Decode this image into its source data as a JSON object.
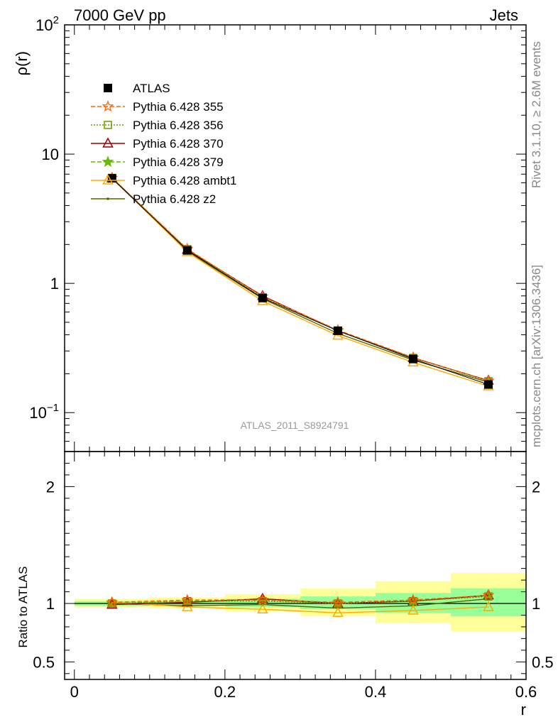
{
  "header": {
    "left": "7000 GeV pp",
    "right": "Jets"
  },
  "side_labels": {
    "top": "Rivet 3.1.10, ≥ 2.6M events",
    "bottom": "mcplots.cern.ch [arXiv:1306.3436]"
  },
  "watermark": "ATLAS_2011_S8924791",
  "colors": {
    "atlas": "#000000",
    "p355": "#ff6600",
    "p356": "#669900",
    "p370": "#990000",
    "p379": "#66bb00",
    "ambt1": "#ffaa00",
    "z2": "#556600",
    "band_stat": "#99ff99",
    "band_total": "#ffff99"
  },
  "chart_data": [
    {
      "type": "line",
      "panel": "main",
      "ylabel": "ρ(r)",
      "xlabel": "",
      "yscale": "log",
      "ylim": [
        0.05,
        100
      ],
      "xlim": [
        -0.013,
        0.6
      ],
      "yticks": [
        {
          "value": 0.1,
          "base": "10",
          "exp": "−1"
        },
        {
          "value": 1,
          "base": "1",
          "exp": ""
        },
        {
          "value": 10,
          "base": "10",
          "exp": ""
        },
        {
          "value": 100,
          "base": "10",
          "exp": "2"
        }
      ],
      "x": [
        0.05,
        0.15,
        0.25,
        0.35,
        0.45,
        0.55
      ],
      "series": [
        {
          "name": "ATLAS",
          "key": "atlas",
          "marker": "square-filled",
          "dash": "none",
          "values": [
            6.5,
            1.8,
            0.77,
            0.43,
            0.26,
            0.165
          ]
        },
        {
          "name": "Pythia 6.428 355",
          "key": "p355",
          "marker": "star-open",
          "dash": "6,3",
          "values": [
            6.55,
            1.85,
            0.79,
            0.435,
            0.267,
            0.176
          ]
        },
        {
          "name": "Pythia 6.428 356",
          "key": "p356",
          "marker": "square-open",
          "dash": "2,2",
          "values": [
            6.55,
            1.84,
            0.78,
            0.43,
            0.265,
            0.175
          ]
        },
        {
          "name": "Pythia 6.428 370",
          "key": "p370",
          "marker": "triangle-open",
          "dash": "none",
          "values": [
            6.5,
            1.82,
            0.8,
            0.43,
            0.265,
            0.177
          ]
        },
        {
          "name": "Pythia 6.428 379",
          "key": "p379",
          "marker": "star-filled",
          "dash": "6,3",
          "values": [
            6.55,
            1.83,
            0.79,
            0.43,
            0.265,
            0.177
          ]
        },
        {
          "name": "Pythia 6.428 ambt1",
          "key": "ambt1",
          "marker": "triangle-open",
          "dash": "none",
          "values": [
            6.55,
            1.75,
            0.73,
            0.395,
            0.245,
            0.16
          ]
        },
        {
          "name": "Pythia 6.428 z2",
          "key": "z2",
          "marker": "dot",
          "dash": "none",
          "values": [
            6.5,
            1.77,
            0.76,
            0.41,
            0.255,
            0.172
          ]
        }
      ]
    },
    {
      "type": "line",
      "panel": "ratio",
      "ylabel": "Ratio to ATLAS",
      "xlabel": "r",
      "ylim": [
        0.35,
        2.3
      ],
      "xlim": [
        -0.013,
        0.6
      ],
      "xticks": [
        "0",
        "0.2",
        "0.4",
        "0.6"
      ],
      "xtick_values": [
        0,
        0.2,
        0.4,
        0.6
      ],
      "yticks": [
        "0.5",
        "1",
        "2"
      ],
      "ytick_values": [
        0.5,
        1,
        2
      ],
      "bins": [
        [
          0.0,
          0.1
        ],
        [
          0.1,
          0.2
        ],
        [
          0.2,
          0.3
        ],
        [
          0.3,
          0.4
        ],
        [
          0.4,
          0.5
        ],
        [
          0.5,
          0.6
        ]
      ],
      "band_total": [
        [
          0.97,
          1.04
        ],
        [
          0.96,
          1.05
        ],
        [
          0.93,
          1.08
        ],
        [
          0.89,
          1.13
        ],
        [
          0.83,
          1.19
        ],
        [
          0.76,
          1.26
        ]
      ],
      "band_stat": [
        [
          0.98,
          1.02
        ],
        [
          0.985,
          1.02
        ],
        [
          0.97,
          1.04
        ],
        [
          0.95,
          1.06
        ],
        [
          0.92,
          1.09
        ],
        [
          0.89,
          1.13
        ]
      ],
      "x": [
        0.05,
        0.15,
        0.25,
        0.35,
        0.45,
        0.55
      ],
      "series": [
        {
          "key": "p355",
          "marker": "star-open",
          "dash": "6,3",
          "values": [
            1.01,
            1.03,
            1.03,
            1.01,
            1.03,
            1.07
          ]
        },
        {
          "key": "p356",
          "marker": "square-open",
          "dash": "2,2",
          "values": [
            1.0,
            1.02,
            1.02,
            1.0,
            1.02,
            1.06
          ]
        },
        {
          "key": "p370",
          "marker": "triangle-open",
          "dash": "none",
          "values": [
            0.99,
            1.01,
            1.04,
            1.0,
            1.02,
            1.07
          ]
        },
        {
          "key": "p379",
          "marker": "star-filled",
          "dash": "6,3",
          "values": [
            1.0,
            1.02,
            1.03,
            1.0,
            1.02,
            1.07
          ]
        },
        {
          "key": "ambt1",
          "marker": "triangle-open",
          "dash": "none",
          "values": [
            1.01,
            0.97,
            0.95,
            0.92,
            0.94,
            0.97
          ]
        },
        {
          "key": "z2",
          "marker": "dot",
          "dash": "none",
          "values": [
            1.0,
            0.98,
            0.99,
            0.96,
            0.98,
            1.04
          ]
        }
      ]
    }
  ]
}
